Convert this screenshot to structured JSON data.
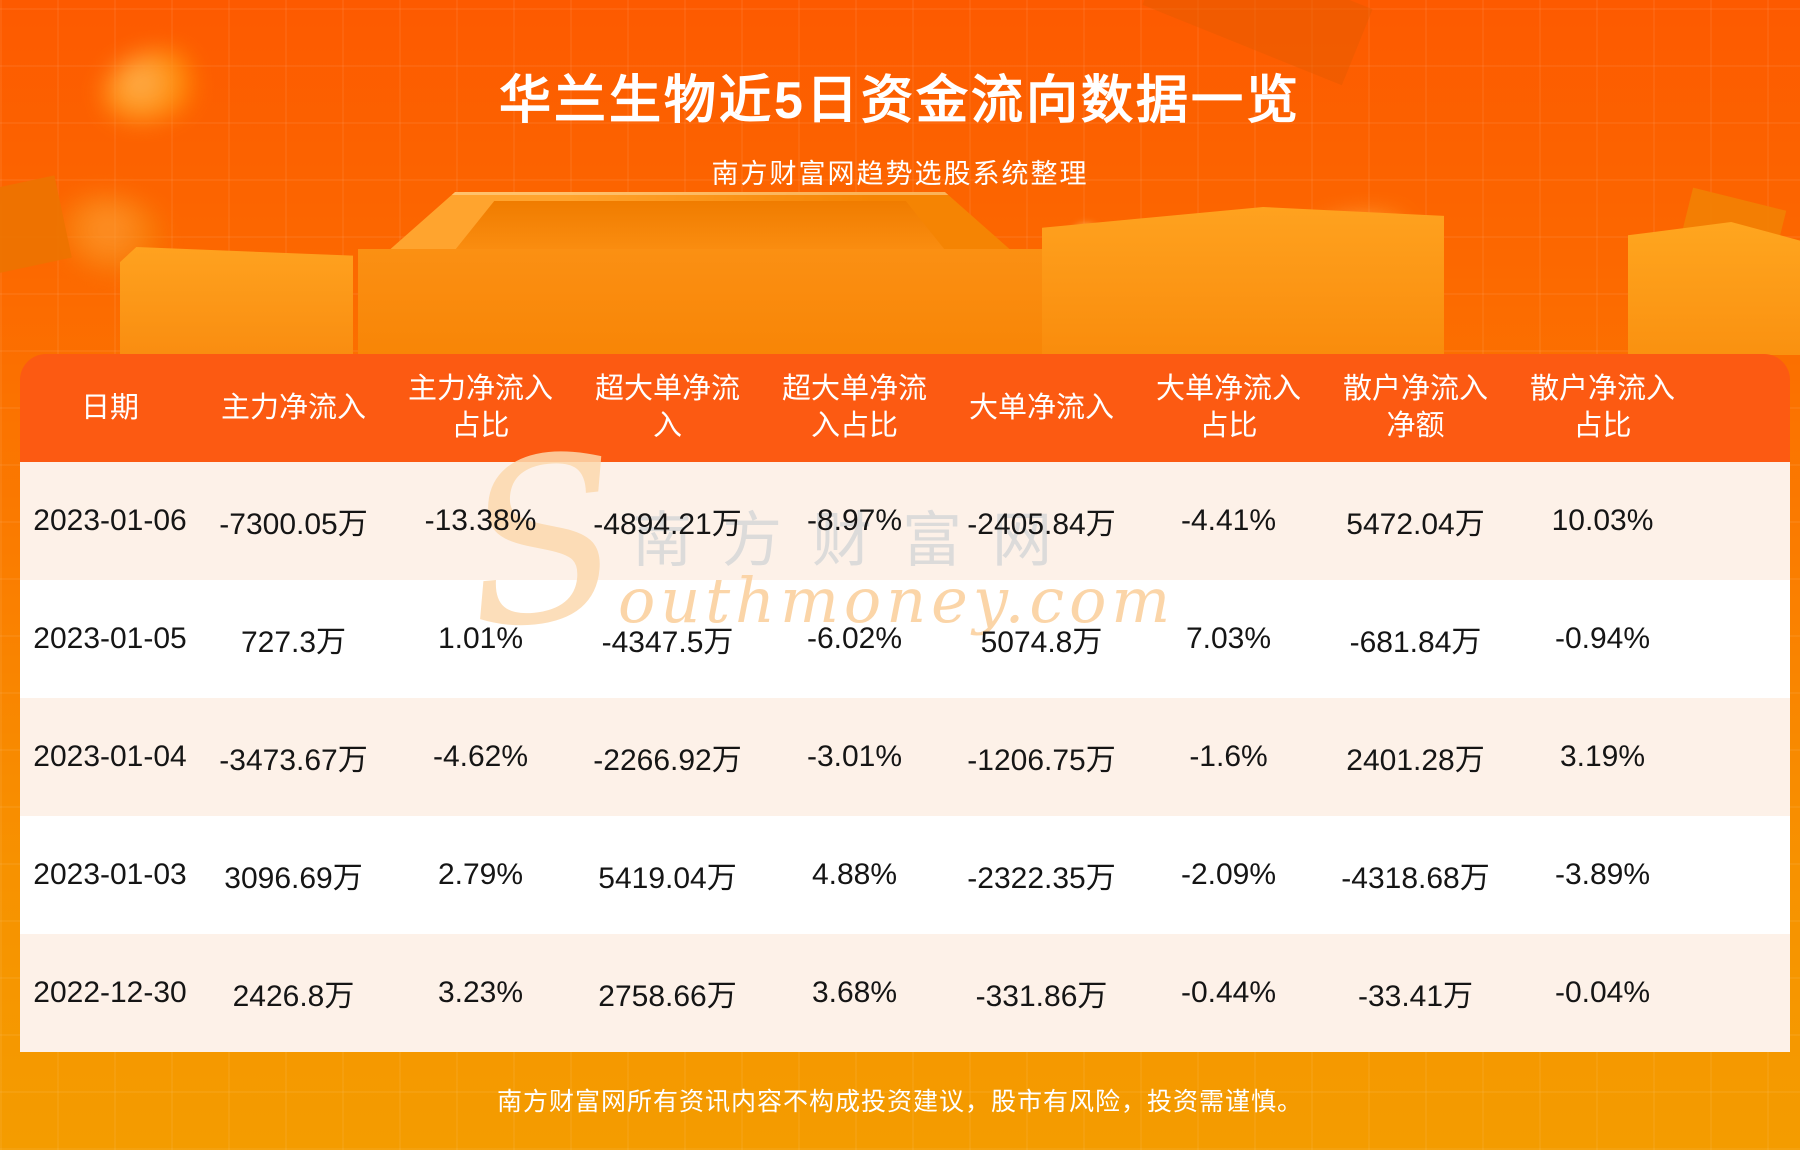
{
  "header": {
    "title": "华兰生物近5日资金流向数据一览",
    "subtitle": "南方财富网趋势选股系统整理"
  },
  "table": {
    "header_lines": [
      {
        "line1": "日期",
        "line2": ""
      },
      {
        "line1": "主力净流入",
        "line2": ""
      },
      {
        "line1": "主力净流入",
        "line2": "占比"
      },
      {
        "line1": "超大单净流",
        "line2": "入"
      },
      {
        "line1": "超大单净流",
        "line2": "入占比"
      },
      {
        "line1": "大单净流入",
        "line2": ""
      },
      {
        "line1": "大单净流入",
        "line2": "占比"
      },
      {
        "line1": "散户净流入",
        "line2": "净额"
      },
      {
        "line1": "散户净流入",
        "line2": "占比"
      }
    ]
  },
  "chart_data": {
    "type": "table",
    "title": "华兰生物近5日资金流向数据一览",
    "columns": [
      "日期",
      "主力净流入",
      "主力净流入占比",
      "超大单净流入",
      "超大单净流入占比",
      "大单净流入",
      "大单净流入占比",
      "散户净流入净额",
      "散户净流入占比"
    ],
    "rows": [
      [
        "2023-01-06",
        "-7300.05万",
        "-13.38%",
        "-4894.21万",
        "-8.97%",
        "-2405.84万",
        "-4.41%",
        "5472.04万",
        "10.03%"
      ],
      [
        "2023-01-05",
        "727.3万",
        "1.01%",
        "-4347.5万",
        "-6.02%",
        "5074.8万",
        "7.03%",
        "-681.84万",
        "-0.94%"
      ],
      [
        "2023-01-04",
        "-3473.67万",
        "-4.62%",
        "-2266.92万",
        "-3.01%",
        "-1206.75万",
        "-1.6%",
        "2401.28万",
        "3.19%"
      ],
      [
        "2023-01-03",
        "3096.69万",
        "2.79%",
        "5419.04万",
        "4.88%",
        "-2322.35万",
        "-2.09%",
        "-4318.68万",
        "-3.89%"
      ],
      [
        "2022-12-30",
        "2426.8万",
        "3.23%",
        "2758.66万",
        "3.68%",
        "-331.86万",
        "-0.44%",
        "-33.41万",
        "-0.04%"
      ]
    ]
  },
  "watermark": {
    "s": "S",
    "cn": "南方财富网",
    "en": "outhmoney.com"
  },
  "footer": {
    "disclaimer": "南方财富网所有资讯内容不构成投资建议，股市有风险，投资需谨慎。"
  },
  "colors": {
    "background_top": "#fd5a00",
    "background_bottom": "#f49c00",
    "table_header": "#fc5a12",
    "row_alt": "#fdf1e8",
    "row_white": "#ffffff",
    "cell_text": "#151515",
    "title_text": "#ffffff"
  }
}
